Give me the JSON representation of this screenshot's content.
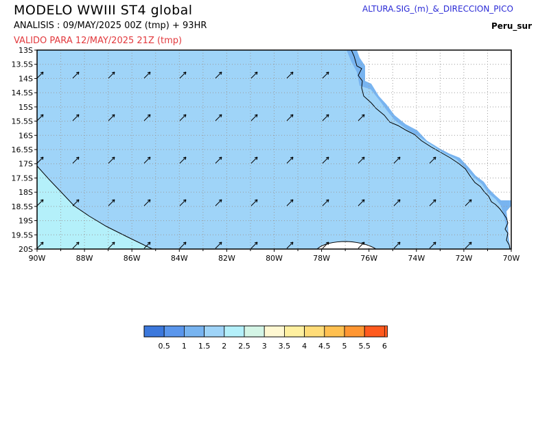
{
  "header": {
    "title": "MODELO WWIII ST4 global",
    "analysis": "ANALISIS : 09/MAY/2025 00Z (tmp) + 93HR",
    "valid": "VALIDO PARA  12/MAY/2025 21Z  (tmp)",
    "parameter": "ALTURA.SIG_(m)_&_DIRECCION_PICO",
    "region": "Peru_sur"
  },
  "map": {
    "lon_range": [
      -90,
      -70
    ],
    "lat_range": [
      -20,
      -13
    ],
    "lat_labels": [
      "13S",
      "13.5S",
      "14S",
      "14.5S",
      "15S",
      "15.5S",
      "16S",
      "16.5S",
      "17S",
      "17.5S",
      "18S",
      "18.5S",
      "19S",
      "19.5S",
      "20S"
    ],
    "lon_labels": [
      "90W",
      "88W",
      "86W",
      "84W",
      "82W",
      "80W",
      "78W",
      "76W",
      "74W",
      "72W",
      "70W"
    ],
    "grid": true,
    "colors": {
      "sea_main": "#9fd4f8",
      "sea_low": "#b4f0fa",
      "sea_coast": "#78b4f0",
      "land": "#ffffff"
    }
  },
  "colorbar": {
    "labels": [
      "0.5",
      "1",
      "1.5",
      "2",
      "2.5",
      "3",
      "3.5",
      "4",
      "4.5",
      "5",
      "5.5",
      "6"
    ],
    "colors": [
      "#3c78dc",
      "#5a96ec",
      "#78b4f0",
      "#9fd4f8",
      "#b4f0fa",
      "#d4f5e6",
      "#fff8d2",
      "#fff0a0",
      "#ffdc78",
      "#ffc050",
      "#ff9632",
      "#ff5a1e"
    ]
  }
}
